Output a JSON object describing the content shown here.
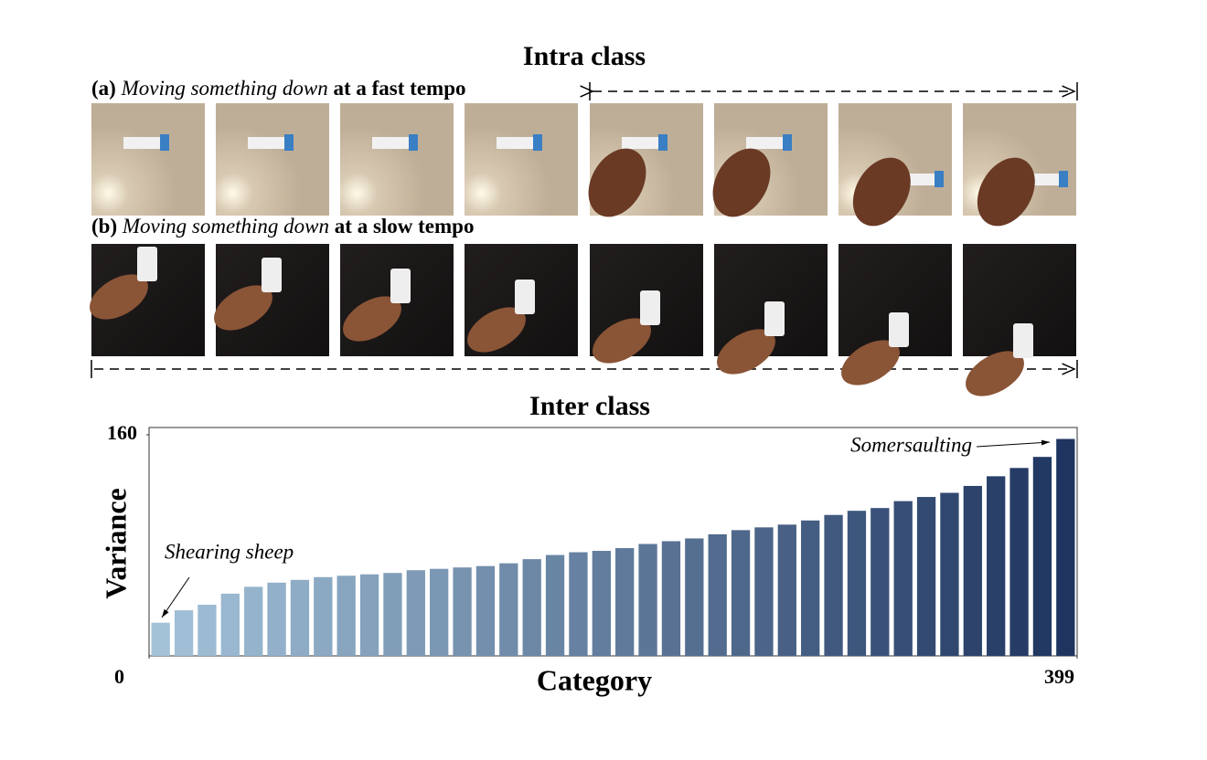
{
  "figure": {
    "intra_title": "Intra class",
    "rows": [
      {
        "label": "(a)",
        "action": "Moving something down",
        "tempo": "at a fast tempo"
      },
      {
        "label": "(b)",
        "action": "Moving something down",
        "tempo": "at a slow tempo"
      }
    ]
  },
  "chart_data": {
    "type": "bar",
    "title": "Inter class",
    "xlabel": "Category",
    "ylabel": "Variance",
    "categories": [
      null,
      null,
      null,
      null,
      null,
      null,
      null,
      null,
      null,
      null,
      null,
      null,
      null,
      null,
      null,
      null,
      null,
      null,
      null,
      null,
      null,
      null,
      null,
      null,
      null,
      null,
      null,
      null,
      null,
      null,
      null,
      null,
      null,
      null,
      null,
      null,
      null,
      null,
      null,
      null
    ],
    "values": [
      24,
      33,
      37,
      45,
      50,
      53,
      55,
      57,
      58,
      59,
      60,
      62,
      63,
      64,
      65,
      67,
      70,
      73,
      75,
      76,
      78,
      81,
      83,
      85,
      88,
      91,
      93,
      95,
      98,
      102,
      105,
      107,
      112,
      115,
      118,
      123,
      130,
      136,
      144,
      157
    ],
    "xlim": [
      0,
      399
    ],
    "xticks": [
      0,
      399
    ],
    "ylim": [
      0,
      160
    ],
    "yticks": [
      160
    ],
    "color_range": [
      "#a3c2d8",
      "#1f3560"
    ],
    "annotations": [
      "Shearing sheep",
      "Somersaulting"
    ]
  }
}
